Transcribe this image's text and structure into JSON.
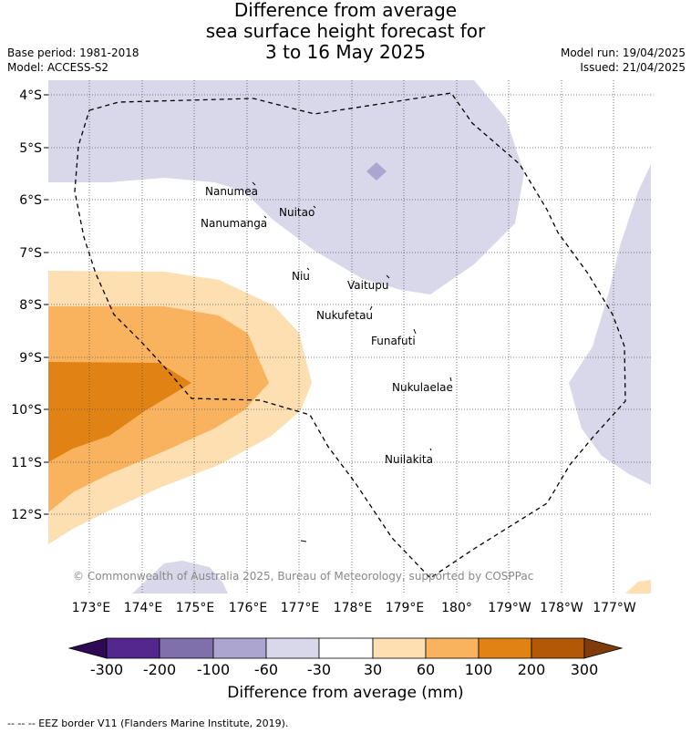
{
  "title": {
    "line1": "Difference from average",
    "line2": "sea surface height forecast for",
    "line3": "3 to 16 May 2025"
  },
  "left_meta": {
    "base_period": "Base period: 1981-2018",
    "model": "Model: ACCESS-S2"
  },
  "right_meta": {
    "model_run": "Model run: 19/04/2025",
    "issued": "Issued: 21/04/2025"
  },
  "map": {
    "lat_labels": [
      "4°S",
      "5°S",
      "6°S",
      "7°S",
      "8°S",
      "9°S",
      "10°S",
      "11°S",
      "12°S"
    ],
    "lon_labels": [
      "173°E",
      "174°E",
      "175°E",
      "176°E",
      "177°E",
      "178°E",
      "179°E",
      "180°",
      "179°W",
      "178°W",
      "177°W"
    ],
    "places": [
      {
        "name": "Nanumea"
      },
      {
        "name": "Nuitao"
      },
      {
        "name": "Nanumanga"
      },
      {
        "name": "Niu"
      },
      {
        "name": "Vaitupu"
      },
      {
        "name": "Nukufetau"
      },
      {
        "name": "Funafuti"
      },
      {
        "name": "Nukulaelae"
      },
      {
        "name": "Nuilakita"
      }
    ],
    "copyright": "© Commonwealth of Australia 2025, Bureau of Meteorology, supported by COSPPac"
  },
  "colorbar": {
    "tick_labels": [
      "-300",
      "-200",
      "-100",
      "-60",
      "-30",
      "30",
      "60",
      "100",
      "200",
      "300"
    ],
    "label": "Difference from average (mm)",
    "colors": {
      "below_-300": "#2e0a55",
      "-300_-200": "#54278f",
      "-200_-100": "#7f6fab",
      "-100_-60": "#aca5cf",
      "-60_-30": "#d8d8ea",
      "-30_30": "#ffffff",
      "30_60": "#fddfb1",
      "60_100": "#f9b35f",
      "100_200": "#e08214",
      "200_300": "#b35806",
      "above_300": "#7f3b08"
    }
  },
  "footer": "--  --  -- EEZ border V11 (Flanders Marine Institute, 2019)."
}
